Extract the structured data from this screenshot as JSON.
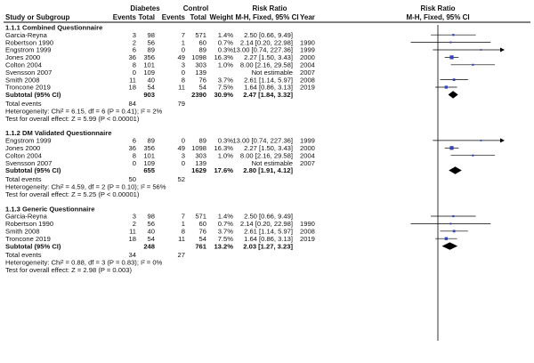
{
  "chart_data": {
    "type": "forest",
    "group_headers": {
      "diabetes": "Diabetes",
      "control": "Control"
    },
    "columns": {
      "study": "Study or Subgroup",
      "d_events": "Events",
      "d_total": "Total",
      "c_events": "Events",
      "c_total": "Total",
      "weight": "Weight",
      "rr_top": "Risk Ratio",
      "rr_sub": "M-H, Fixed, 95% CI",
      "year": "Year",
      "plot_top": "Risk Ratio",
      "plot_sub": "M-H, Fixed, 95% CI"
    },
    "axis": {
      "scale": "log",
      "null_value": 1,
      "visible_range": [
        0.02,
        50
      ]
    },
    "subgroups": [
      {
        "title": "1.1.1 Combined Questionnaire",
        "studies": [
          {
            "name": "Garcia-Reyna",
            "d_events": "3",
            "d_total": "98",
            "c_events": "7",
            "c_total": "571",
            "weight": "1.4%",
            "ci_text": "2.50 [0.66, 9.49]",
            "year": "",
            "rr": 2.5,
            "lo": 0.66,
            "hi": 9.49
          },
          {
            "name": "Robertson 1990",
            "d_events": "2",
            "d_total": "56",
            "c_events": "1",
            "c_total": "60",
            "weight": "0.7%",
            "ci_text": "2.14 [0.20, 22.98]",
            "year": "1990",
            "rr": 2.14,
            "lo": 0.2,
            "hi": 22.98
          },
          {
            "name": "Engstrom 1999",
            "d_events": "6",
            "d_total": "89",
            "c_events": "0",
            "c_total": "89",
            "weight": "0.3%",
            "ci_text": "13.00 [0.74, 227.36]",
            "year": "1999",
            "rr": 13.0,
            "lo": 0.74,
            "hi": 227.36
          },
          {
            "name": "Jones 2000",
            "d_events": "36",
            "d_total": "356",
            "c_events": "49",
            "c_total": "1098",
            "weight": "16.3%",
            "ci_text": "2.27 [1.50, 3.43]",
            "year": "2000",
            "rr": 2.27,
            "lo": 1.5,
            "hi": 3.43
          },
          {
            "name": "Colton 2004",
            "d_events": "8",
            "d_total": "101",
            "c_events": "3",
            "c_total": "303",
            "weight": "1.0%",
            "ci_text": "8.00 [2.16, 29.58]",
            "year": "2004",
            "rr": 8.0,
            "lo": 2.16,
            "hi": 29.58
          },
          {
            "name": "Svensson 2007",
            "d_events": "0",
            "d_total": "109",
            "c_events": "0",
            "c_total": "139",
            "weight": "",
            "ci_text": "Not estimable",
            "year": "2007",
            "rr": null,
            "lo": null,
            "hi": null
          },
          {
            "name": "Smith 2008",
            "d_events": "11",
            "d_total": "40",
            "c_events": "8",
            "c_total": "76",
            "weight": "3.7%",
            "ci_text": "2.61 [1.14, 5.97]",
            "year": "2008",
            "rr": 2.61,
            "lo": 1.14,
            "hi": 5.97
          },
          {
            "name": "Troncone 2019",
            "d_events": "18",
            "d_total": "54",
            "c_events": "11",
            "c_total": "54",
            "weight": "7.5%",
            "ci_text": "1.64 [0.86, 3.13]",
            "year": "2019",
            "rr": 1.64,
            "lo": 0.86,
            "hi": 3.13
          }
        ],
        "subtotal": {
          "label": "Subtotal (95% CI)",
          "d_total": "903",
          "c_total": "2390",
          "weight": "30.9%",
          "ci_text": "2.47 [1.84, 3.32]",
          "rr": 2.47,
          "lo": 1.84,
          "hi": 3.32
        },
        "total_events": {
          "label": "Total events",
          "d_events": "84",
          "c_events": "79"
        },
        "heterogeneity": "Heterogeneity: Chi² = 6.15, df = 6 (P = 0.41); I² = 2%",
        "overall_effect": "Test for overall effect: Z = 5.99 (P < 0.00001)"
      },
      {
        "title": "1.1.2 DM Validated Questionnaire",
        "studies": [
          {
            "name": "Engstrom 1999",
            "d_events": "6",
            "d_total": "89",
            "c_events": "0",
            "c_total": "89",
            "weight": "0.3%",
            "ci_text": "13.00 [0.74, 227.36]",
            "year": "1999",
            "rr": 13.0,
            "lo": 0.74,
            "hi": 227.36
          },
          {
            "name": "Jones 2000",
            "d_events": "36",
            "d_total": "356",
            "c_events": "49",
            "c_total": "1098",
            "weight": "16.3%",
            "ci_text": "2.27 [1.50, 3.43]",
            "year": "2000",
            "rr": 2.27,
            "lo": 1.5,
            "hi": 3.43
          },
          {
            "name": "Colton 2004",
            "d_events": "8",
            "d_total": "101",
            "c_events": "3",
            "c_total": "303",
            "weight": "1.0%",
            "ci_text": "8.00 [2.16, 29.58]",
            "year": "2004",
            "rr": 8.0,
            "lo": 2.16,
            "hi": 29.58
          },
          {
            "name": "Svensson 2007",
            "d_events": "0",
            "d_total": "109",
            "c_events": "0",
            "c_total": "139",
            "weight": "",
            "ci_text": "Not estimable",
            "year": "2007",
            "rr": null,
            "lo": null,
            "hi": null
          }
        ],
        "subtotal": {
          "label": "Subtotal (95% CI)",
          "d_total": "655",
          "c_total": "1629",
          "weight": "17.6%",
          "ci_text": "2.80 [1.91, 4.12]",
          "rr": 2.8,
          "lo": 1.91,
          "hi": 4.12
        },
        "total_events": {
          "label": "Total events",
          "d_events": "50",
          "c_events": "52"
        },
        "heterogeneity": "Heterogeneity: Chi² = 4.59, df = 2 (P = 0.10); I² = 56%",
        "overall_effect": "Test for overall effect: Z = 5.25 (P < 0.00001)"
      },
      {
        "title": "1.1.3 Generic Questionnaire",
        "studies": [
          {
            "name": "Garcia-Reyna",
            "d_events": "3",
            "d_total": "98",
            "c_events": "7",
            "c_total": "571",
            "weight": "1.4%",
            "ci_text": "2.50 [0.66, 9.49]",
            "year": "",
            "rr": 2.5,
            "lo": 0.66,
            "hi": 9.49
          },
          {
            "name": "Robertson 1990",
            "d_events": "2",
            "d_total": "56",
            "c_events": "1",
            "c_total": "60",
            "weight": "0.7%",
            "ci_text": "2.14 [0.20, 22.98]",
            "year": "1990",
            "rr": 2.14,
            "lo": 0.2,
            "hi": 22.98
          },
          {
            "name": "Smith 2008",
            "d_events": "11",
            "d_total": "40",
            "c_events": "8",
            "c_total": "76",
            "weight": "3.7%",
            "ci_text": "2.61 [1.14, 5.97]",
            "year": "2008",
            "rr": 2.61,
            "lo": 1.14,
            "hi": 5.97
          },
          {
            "name": "Troncone 2019",
            "d_events": "18",
            "d_total": "54",
            "c_events": "11",
            "c_total": "54",
            "weight": "7.5%",
            "ci_text": "1.64 [0.86, 3.13]",
            "year": "2019",
            "rr": 1.64,
            "lo": 0.86,
            "hi": 3.13
          }
        ],
        "subtotal": {
          "label": "Subtotal (95% CI)",
          "d_total": "248",
          "c_total": "761",
          "weight": "13.2%",
          "ci_text": "2.03 [1.27, 3.23]",
          "rr": 2.03,
          "lo": 1.27,
          "hi": 3.23
        },
        "total_events": {
          "label": "Total events",
          "d_events": "34",
          "c_events": "27"
        },
        "heterogeneity": "Heterogeneity: Chi² = 0.88, df = 3 (P = 0.83); I² = 0%",
        "overall_effect": "Test for overall effect: Z = 2.98 (P = 0.003)"
      }
    ],
    "colors": {
      "square": "#3344bb",
      "diamond": "#000000",
      "line": "#000000",
      "null_line": "#000000"
    }
  }
}
